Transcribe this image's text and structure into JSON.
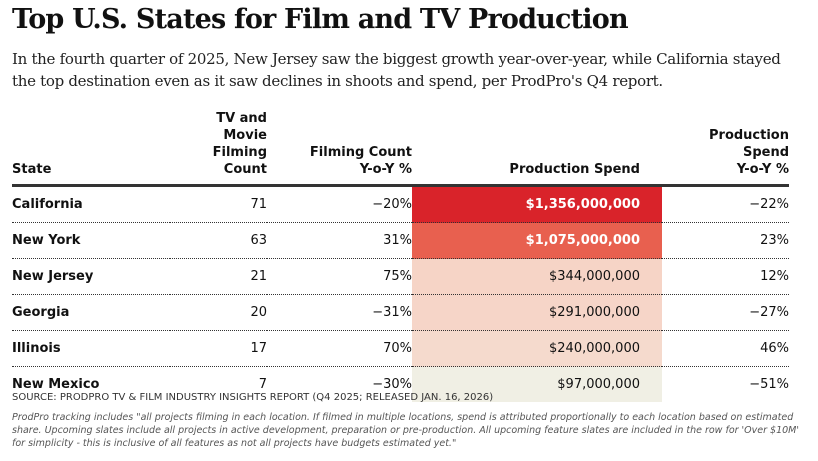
{
  "title": "Top U.S. States for Film and TV Production",
  "subtitle": "In the fourth quarter of 2025, New Jersey saw the biggest growth year-over-year, while California stayed the top destination even as it saw declines in shoots and spend, per ProdPro's Q4 report.",
  "chart_data": {
    "type": "table",
    "columns": [
      "State",
      "TV and Movie Filming Count",
      "Filming Count Y-o-Y %",
      "Production Spend",
      "Production Spend Y-o-Y %"
    ],
    "rows": [
      {
        "state": "California",
        "count": "71",
        "count_yoy": "−20%",
        "spend": "$1,356,000,000",
        "spend_yoy": "−22%",
        "color": "#d9232a",
        "light": true
      },
      {
        "state": "New York",
        "count": "63",
        "count_yoy": "31%",
        "spend": "$1,075,000,000",
        "spend_yoy": "23%",
        "color": "#e8604f",
        "light": true
      },
      {
        "state": "New Jersey",
        "count": "21",
        "count_yoy": "75%",
        "spend": "$344,000,000",
        "spend_yoy": "12%",
        "color": "#f6d4c6",
        "light": false
      },
      {
        "state": "Georgia",
        "count": "20",
        "count_yoy": "−31%",
        "spend": "$291,000,000",
        "spend_yoy": "−27%",
        "color": "#f6d5c8",
        "light": false
      },
      {
        "state": "Illinois",
        "count": "17",
        "count_yoy": "70%",
        "spend": "$240,000,000",
        "spend_yoy": "46%",
        "color": "#f5dacd",
        "light": false
      },
      {
        "state": "New Mexico",
        "count": "7",
        "count_yoy": "−30%",
        "spend": "$97,000,000",
        "spend_yoy": "−51%",
        "color": "#f0efe4",
        "light": false
      }
    ]
  },
  "source": "SOURCE: PRODPRO TV & FILM INDUSTRY INSIGHTS REPORT (Q4 2025; RELEASED JAN. 16, 2026)",
  "note": "ProdPro tracking includes \"all projects filming in each location. If filmed in multiple locations, spend is attributed proportionally to each location based on estimated share. Upcoming slates include all projects in active development, preparation or pre-production. All upcoming feature slates are included in the row for 'Over $10M' for simplicity - this is inclusive of all features as not all projects have budgets estimated yet.\""
}
